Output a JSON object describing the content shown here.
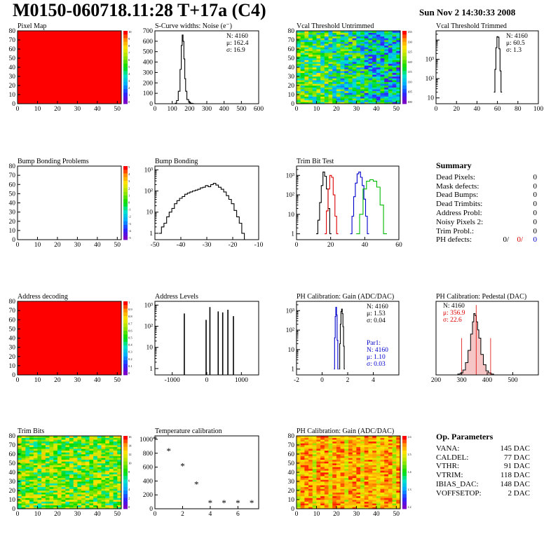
{
  "header": {
    "title": "M0150-060718.11:28 T+17a (C4)",
    "timestamp": "Sun Nov  2 14:30:33 2008"
  },
  "chart_data": [
    {
      "id": "pixel-map",
      "type": "heatmap",
      "title": "Pixel Map",
      "xlim": [
        0,
        52
      ],
      "ylim": [
        0,
        80
      ],
      "xticks": [
        0,
        10,
        20,
        30,
        40,
        50
      ],
      "yticks": [
        0,
        10,
        20,
        30,
        40,
        50,
        60,
        70,
        80
      ],
      "palette": "uniform-red",
      "zlabels": [
        "10",
        "9",
        "8",
        "7",
        "6",
        "5",
        "4",
        "3",
        "2",
        "1",
        "0"
      ]
    },
    {
      "id": "scurve-noise",
      "type": "line",
      "title": "S-Curve widths: Noise (e⁻)",
      "xlim": [
        0,
        600
      ],
      "ylim": [
        0,
        700
      ],
      "xticks": [
        0,
        100,
        200,
        300,
        400,
        500,
        600
      ],
      "yticks": [
        0,
        100,
        200,
        300,
        400,
        500,
        600,
        700
      ],
      "stats": {
        "lines": [
          "N: 4160",
          "μ: 162.4",
          "σ: 16.9"
        ]
      },
      "x": [
        120,
        130,
        140,
        150,
        155,
        160,
        165,
        170,
        175,
        180,
        190,
        200,
        210,
        220
      ],
      "values": [
        5,
        30,
        120,
        330,
        560,
        660,
        600,
        430,
        240,
        120,
        40,
        15,
        5,
        2
      ]
    },
    {
      "id": "vcal-untrimmed",
      "type": "heatmap",
      "title": "Vcal Threshold Untrimmed",
      "xlim": [
        0,
        52
      ],
      "ylim": [
        0,
        80
      ],
      "xticks": [
        0,
        10,
        20,
        30,
        40,
        50
      ],
      "yticks": [
        0,
        10,
        20,
        30,
        40,
        50,
        60,
        70,
        80
      ],
      "palette": "noise-green-blue",
      "zlabels": [
        "135",
        "130",
        "125",
        "120",
        "115",
        "110",
        "105",
        "100"
      ]
    },
    {
      "id": "vcal-trimmed",
      "type": "line",
      "title": "Vcal Threshold Trimmed",
      "logy": true,
      "xlim": [
        0,
        100
      ],
      "ylim": [
        0.5,
        3000
      ],
      "xticks": [
        0,
        20,
        40,
        60,
        80,
        100
      ],
      "yticklabels": [
        "10",
        "10²",
        "10³"
      ],
      "stats": {
        "lines": [
          "N: 4160",
          "μ: 60.5",
          "σ:  1.3"
        ]
      },
      "x": [
        57,
        58,
        59,
        60,
        61,
        62,
        63,
        64
      ],
      "values": [
        2,
        30,
        400,
        1500,
        1400,
        350,
        25,
        2
      ]
    },
    {
      "id": "bump-problems",
      "type": "heatmap",
      "title": "Bump Bonding Problems",
      "xlim": [
        0,
        52
      ],
      "ylim": [
        0,
        80
      ],
      "xticks": [
        0,
        10,
        20,
        30,
        40,
        50
      ],
      "yticks": [
        0,
        10,
        20,
        30,
        40,
        50,
        60,
        70,
        80
      ],
      "palette": "empty",
      "zlabels": [
        "5",
        "4",
        "3",
        "2",
        "1",
        "0",
        "-1",
        "-2",
        "-3",
        "-4",
        "-5"
      ]
    },
    {
      "id": "bump-bonding",
      "type": "line",
      "title": "Bump Bonding",
      "logy": true,
      "xlim": [
        -50,
        -10
      ],
      "ylim": [
        0.5,
        1500
      ],
      "xticks": [
        -50,
        -40,
        -30,
        -20,
        -10
      ],
      "yticklabels": [
        "1",
        "10",
        "10²",
        "10³"
      ],
      "x": [
        -48,
        -47,
        -46,
        -45,
        -44,
        -43,
        -42,
        -41,
        -40,
        -39,
        -38,
        -37,
        -36,
        -35,
        -34,
        -33,
        -32,
        -31,
        -30,
        -29,
        -28,
        -27,
        -26,
        -25,
        -24,
        -23,
        -22,
        -21,
        -20,
        -19,
        -18,
        -17,
        -16,
        -15
      ],
      "values": [
        1,
        2,
        3,
        6,
        10,
        15,
        25,
        35,
        45,
        55,
        70,
        80,
        90,
        100,
        110,
        120,
        140,
        150,
        180,
        160,
        200,
        230,
        190,
        150,
        120,
        90,
        60,
        40,
        25,
        12,
        6,
        3,
        1,
        0
      ]
    },
    {
      "id": "trim-bit-test",
      "type": "line",
      "title": "Trim Bit Test",
      "logy": true,
      "xlim": [
        0,
        60
      ],
      "ylim": [
        0.5,
        3000
      ],
      "xticks": [
        0,
        20,
        40,
        60
      ],
      "yticklabels": [
        "1",
        "10",
        "10²",
        "10³"
      ],
      "series": [
        {
          "color": "#000000",
          "x": [
            12,
            13,
            14,
            15,
            16,
            17,
            18,
            19,
            20
          ],
          "values": [
            1,
            5,
            40,
            300,
            1500,
            900,
            200,
            20,
            1
          ]
        },
        {
          "color": "#dd0000",
          "x": [
            17,
            18,
            19,
            20,
            21,
            22,
            23,
            24
          ],
          "values": [
            1,
            15,
            200,
            1000,
            800,
            100,
            8,
            1
          ]
        },
        {
          "color": "#0000cc",
          "x": [
            32,
            33,
            34,
            35,
            36,
            37,
            38,
            39,
            40,
            41,
            42
          ],
          "values": [
            1,
            8,
            80,
            400,
            1200,
            1500,
            800,
            300,
            60,
            8,
            1
          ]
        },
        {
          "color": "#00bb00",
          "x": [
            36,
            38,
            40,
            42,
            44,
            46,
            48,
            50,
            52
          ],
          "values": [
            1,
            10,
            200,
            500,
            600,
            500,
            250,
            30,
            1
          ]
        }
      ]
    },
    {
      "id": "address-decoding",
      "type": "heatmap",
      "title": "Address decoding",
      "xlim": [
        0,
        52
      ],
      "ylim": [
        0,
        80
      ],
      "xticks": [
        0,
        10,
        20,
        30,
        40,
        50
      ],
      "yticks": [
        0,
        10,
        20,
        30,
        40,
        50,
        60,
        70,
        80
      ],
      "palette": "uniform-red",
      "zlabels": [
        "1",
        "0.9",
        "0.8",
        "0.7",
        "0.6",
        "0.5",
        "0.4",
        "0.3",
        "0.2",
        "0.1",
        "0"
      ]
    },
    {
      "id": "address-levels",
      "type": "bar",
      "title": "Address Levels",
      "logy": true,
      "xlim": [
        -1500,
        1500
      ],
      "ylim": [
        0.5,
        1500
      ],
      "xticks": [
        -1000,
        0,
        1000
      ],
      "yticklabels": [
        "1",
        "10",
        "10²",
        "10³"
      ],
      "x": [
        -650,
        -20,
        90,
        330,
        460,
        610,
        770
      ],
      "values": [
        400,
        200,
        800,
        500,
        450,
        600,
        300
      ]
    },
    {
      "id": "ph-gain",
      "type": "line",
      "title": "PH Calibration: Gain (ADC/DAC)",
      "logy": true,
      "xlim": [
        -2,
        6
      ],
      "ylim": [
        0.5,
        3000
      ],
      "xticks": [
        -2,
        0,
        2,
        4
      ],
      "yticklabels": [
        "1",
        "10",
        "10²",
        "10³"
      ],
      "stats": {
        "lines": [
          "N: 4160",
          "μ: 1.53",
          "σ: 0.04"
        ],
        "par_lines": [
          "Par1:",
          "N: 4160",
          "μ: 1.10",
          "σ: 0.03"
        ]
      },
      "series": [
        {
          "color": "#000000",
          "x": [
            1.35,
            1.4,
            1.45,
            1.5,
            1.55,
            1.6,
            1.65,
            1.7,
            1.75
          ],
          "values": [
            1,
            20,
            200,
            900,
            1200,
            700,
            150,
            15,
            1
          ]
        },
        {
          "color": "#0000cc",
          "x": [
            0.95,
            1.0,
            1.05,
            1.1,
            1.15,
            1.2,
            1.25
          ],
          "values": [
            1,
            40,
            500,
            1500,
            600,
            30,
            1
          ]
        }
      ]
    },
    {
      "id": "ph-pedestal",
      "type": "line",
      "title": "PH Calibration: Pedestal (DAC)",
      "xlim": [
        200,
        600
      ],
      "ylim": [
        0,
        180
      ],
      "xticks": [
        200,
        300,
        400,
        500
      ],
      "stats": {
        "lines": [
          "N: 4160",
          "μ: 356.9",
          "σ: 22.6"
        ]
      },
      "x": [
        290,
        300,
        310,
        320,
        330,
        340,
        345,
        350,
        355,
        360,
        365,
        370,
        380,
        390,
        400,
        410,
        420
      ],
      "values": [
        2,
        5,
        12,
        30,
        60,
        100,
        130,
        150,
        145,
        130,
        110,
        90,
        50,
        25,
        10,
        5,
        2
      ]
    },
    {
      "id": "trim-bits",
      "type": "heatmap",
      "title": "Trim Bits",
      "xlim": [
        0,
        52
      ],
      "ylim": [
        0,
        80
      ],
      "xticks": [
        0,
        10,
        20,
        30,
        40,
        50
      ],
      "yticks": [
        0,
        10,
        20,
        30,
        40,
        50,
        60,
        70,
        80
      ],
      "palette": "noise-green-yellow",
      "zlabels": [
        "16",
        "14",
        "12",
        "10",
        "8",
        "6",
        "4",
        "2",
        "0"
      ]
    },
    {
      "id": "temperature-calibration",
      "type": "scatter",
      "title": "Temperature calibration",
      "xlim": [
        0,
        7.5
      ],
      "ylim": [
        0,
        1050
      ],
      "xticks": [
        0,
        2,
        4,
        6
      ],
      "yticks": [
        0,
        200,
        400,
        600,
        800,
        1000
      ],
      "x": [
        0,
        1,
        2,
        3,
        4,
        5,
        6,
        7
      ],
      "values": [
        1000,
        830,
        610,
        350,
        80,
        80,
        80,
        80
      ]
    },
    {
      "id": "ph-gain-map",
      "type": "heatmap",
      "title": "PH Calibration: Gain (ADC/DAC)",
      "xlim": [
        0,
        52
      ],
      "ylim": [
        0,
        80
      ],
      "xticks": [
        0,
        10,
        20,
        30,
        40,
        50
      ],
      "yticks": [
        0,
        10,
        20,
        30,
        40,
        50,
        60,
        70,
        80
      ],
      "palette": "noise-orange",
      "zlabels": [
        "1.6",
        "1.5",
        "1.4",
        "1.3",
        "1.2"
      ]
    }
  ],
  "summary": {
    "title": "Summary",
    "rows": [
      {
        "label": "Dead Pixels:",
        "value": "0"
      },
      {
        "label": "Mask defects:",
        "value": "0"
      },
      {
        "label": "Dead Bumps:",
        "value": "0"
      },
      {
        "label": "Dead Trimbits:",
        "value": "0"
      },
      {
        "label": "Address Probl:",
        "value": "0"
      },
      {
        "label": "Noisy Pixels 2:",
        "value": "0"
      },
      {
        "label": "Trim Probl.:",
        "value": "0"
      }
    ],
    "ph_defects": {
      "label": "PH defects:",
      "v1": "0/",
      "v2": "0/",
      "v3": "0",
      "colors": [
        "#000000",
        "#dd0000",
        "#0000cc"
      ]
    }
  },
  "op_parameters": {
    "title": "Op. Parameters",
    "rows": [
      {
        "label": "VANA:",
        "value": "145 DAC"
      },
      {
        "label": "CALDEL:",
        "value": "77 DAC"
      },
      {
        "label": "VTHR:",
        "value": "91 DAC"
      },
      {
        "label": "VTRIM:",
        "value": "118 DAC"
      },
      {
        "label": "IBIAS_DAC:",
        "value": "148 DAC"
      },
      {
        "label": "VOFFSETOP:",
        "value": "2 DAC"
      }
    ]
  }
}
